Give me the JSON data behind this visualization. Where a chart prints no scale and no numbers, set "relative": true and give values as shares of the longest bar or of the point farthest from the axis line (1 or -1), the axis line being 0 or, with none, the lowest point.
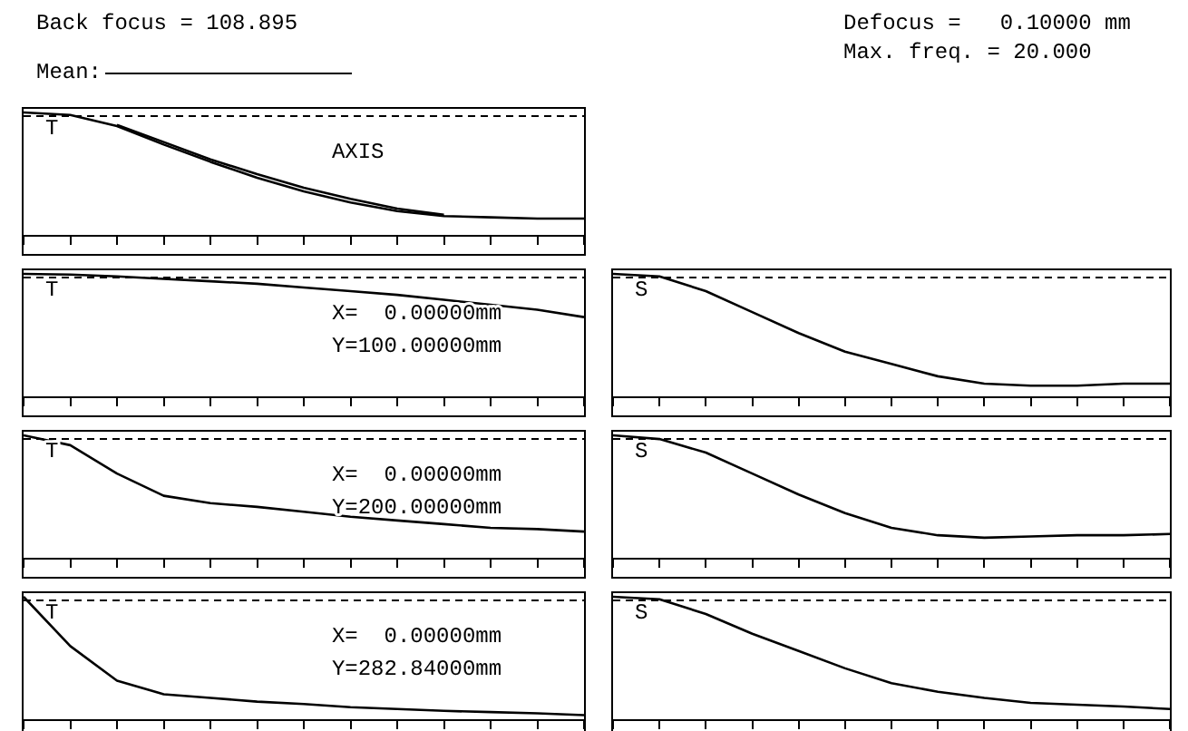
{
  "chart_data": [
    {
      "type": "other",
      "title": "Back focus = 108.895",
      "annotations": [
        "Defocus =   0.10000 mm",
        "Max. freq. = 20.000"
      ]
    },
    {
      "type": "line",
      "relative": true,
      "categories": [
        null,
        null,
        null,
        null,
        null,
        null,
        null,
        null,
        null,
        null,
        null,
        null,
        null
      ],
      "legend": "top left",
      "grid": false,
      "marker": "none",
      "line_style": "solid",
      "series": [
        {
          "name": "Mean:",
          "color": "#000000",
          "values": [
            1.0,
            0.98,
            0.89,
            0.74,
            0.6,
            0.47,
            0.36,
            0.27,
            0.2,
            0.16,
            0.15,
            0.14,
            0.14
          ]
        },
        {
          "color": "#000000",
          "values": [
            null,
            null,
            0.9,
            0.76,
            0.62,
            0.5,
            0.39,
            0.3,
            0.22,
            0.17,
            null,
            null,
            null
          ]
        }
      ],
      "ref_lines": [
        {
          "axis": "y",
          "value": 0.97,
          "line_style": "dashed"
        }
      ],
      "annotations": [
        "T",
        "AXIS"
      ]
    },
    {
      "type": "line",
      "relative": true,
      "categories": [
        null,
        null,
        null,
        null,
        null,
        null,
        null,
        null,
        null,
        null,
        null,
        null,
        null
      ],
      "grid": false,
      "marker": "none",
      "line_style": "solid",
      "series": [
        {
          "color": "#000000",
          "values": [
            1.0,
            0.995,
            0.98,
            0.96,
            0.94,
            0.92,
            0.89,
            0.86,
            0.83,
            0.79,
            0.75,
            0.71,
            0.65
          ]
        }
      ],
      "ref_lines": [
        {
          "axis": "y",
          "value": 0.97,
          "line_style": "dashed"
        }
      ],
      "annotations": [
        "T",
        "X=  0.00000mm",
        "Y=100.00000mm"
      ]
    },
    {
      "type": "line",
      "relative": true,
      "categories": [
        null,
        null,
        null,
        null,
        null,
        null,
        null,
        null,
        null,
        null,
        null,
        null,
        null
      ],
      "grid": false,
      "marker": "none",
      "line_style": "solid",
      "series": [
        {
          "color": "#000000",
          "values": [
            1.0,
            0.98,
            0.86,
            0.69,
            0.52,
            0.37,
            0.27,
            0.17,
            0.11,
            0.094,
            0.094,
            0.11,
            0.11
          ]
        }
      ],
      "ref_lines": [
        {
          "axis": "y",
          "value": 0.97,
          "line_style": "dashed"
        }
      ],
      "annotations": [
        "S"
      ]
    },
    {
      "type": "line",
      "relative": true,
      "categories": [
        null,
        null,
        null,
        null,
        null,
        null,
        null,
        null,
        null,
        null,
        null,
        null,
        null
      ],
      "grid": false,
      "marker": "none",
      "line_style": "solid",
      "series": [
        {
          "color": "#000000",
          "values": [
            1.0,
            0.92,
            0.69,
            0.51,
            0.45,
            0.42,
            0.38,
            0.34,
            0.31,
            0.28,
            0.25,
            0.24,
            0.22
          ]
        }
      ],
      "ref_lines": [
        {
          "axis": "y",
          "value": 0.97,
          "line_style": "dashed"
        }
      ],
      "annotations": [
        "T",
        "X=  0.00000mm",
        "Y=200.00000mm"
      ]
    },
    {
      "type": "line",
      "relative": true,
      "categories": [
        null,
        null,
        null,
        null,
        null,
        null,
        null,
        null,
        null,
        null,
        null,
        null,
        null
      ],
      "grid": false,
      "marker": "none",
      "line_style": "solid",
      "series": [
        {
          "color": "#000000",
          "values": [
            1.0,
            0.97,
            0.86,
            0.69,
            0.52,
            0.37,
            0.25,
            0.19,
            0.17,
            0.18,
            0.19,
            0.19,
            0.2
          ]
        }
      ],
      "ref_lines": [
        {
          "axis": "y",
          "value": 0.97,
          "line_style": "dashed"
        }
      ],
      "annotations": [
        "S"
      ]
    },
    {
      "type": "line",
      "relative": true,
      "categories": [
        null,
        null,
        null,
        null,
        null,
        null,
        null,
        null,
        null,
        null,
        null,
        null,
        null
      ],
      "grid": false,
      "marker": "none",
      "line_style": "solid",
      "series": [
        {
          "color": "#000000",
          "values": [
            1.0,
            0.6,
            0.32,
            0.21,
            0.18,
            0.15,
            0.13,
            0.105,
            0.09,
            0.075,
            0.065,
            0.055,
            0.04
          ]
        }
      ],
      "ref_lines": [
        {
          "axis": "y",
          "value": 0.97,
          "line_style": "dashed"
        }
      ],
      "annotations": [
        "T",
        "X=  0.00000mm",
        "Y=282.84000mm"
      ]
    },
    {
      "type": "line",
      "relative": true,
      "categories": [
        null,
        null,
        null,
        null,
        null,
        null,
        null,
        null,
        null,
        null,
        null,
        null,
        null
      ],
      "grid": false,
      "marker": "none",
      "line_style": "solid",
      "series": [
        {
          "color": "#000000",
          "values": [
            1.0,
            0.98,
            0.86,
            0.7,
            0.56,
            0.42,
            0.3,
            0.23,
            0.18,
            0.14,
            0.125,
            0.11,
            0.09
          ]
        }
      ],
      "ref_lines": [
        {
          "axis": "y",
          "value": 0.97,
          "line_style": "dashed"
        }
      ],
      "annotations": [
        "S"
      ]
    }
  ]
}
